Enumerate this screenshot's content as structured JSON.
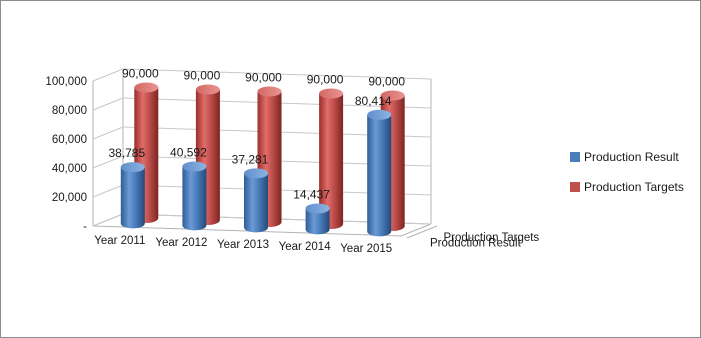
{
  "chart_data": {
    "type": "bar",
    "style": "3d-cylinder",
    "categories": [
      "Year 2011",
      "Year 2012",
      "Year 2013",
      "Year 2014",
      "Year 2015"
    ],
    "series": [
      {
        "name": "Production Result",
        "values": [
          38785,
          40592,
          37281,
          14437,
          80414
        ],
        "labels": [
          "38,785",
          "40,592",
          "37,281",
          "14,437",
          "80,414"
        ],
        "color": "#4a7ebb"
      },
      {
        "name": "Production Targets",
        "values": [
          90000,
          90000,
          90000,
          90000,
          90000
        ],
        "labels": [
          "90,000",
          "90,000",
          "90,000",
          "90,000",
          "90,000"
        ],
        "color": "#c0504d"
      }
    ],
    "depth_axis_labels": [
      "Production Result",
      "Production Targets"
    ],
    "y_ticks": [
      "-",
      "20,000",
      "40,000",
      "60,000",
      "80,000",
      "100,000"
    ],
    "ylim": [
      0,
      100000
    ],
    "grid": true,
    "legend_position": "right"
  }
}
